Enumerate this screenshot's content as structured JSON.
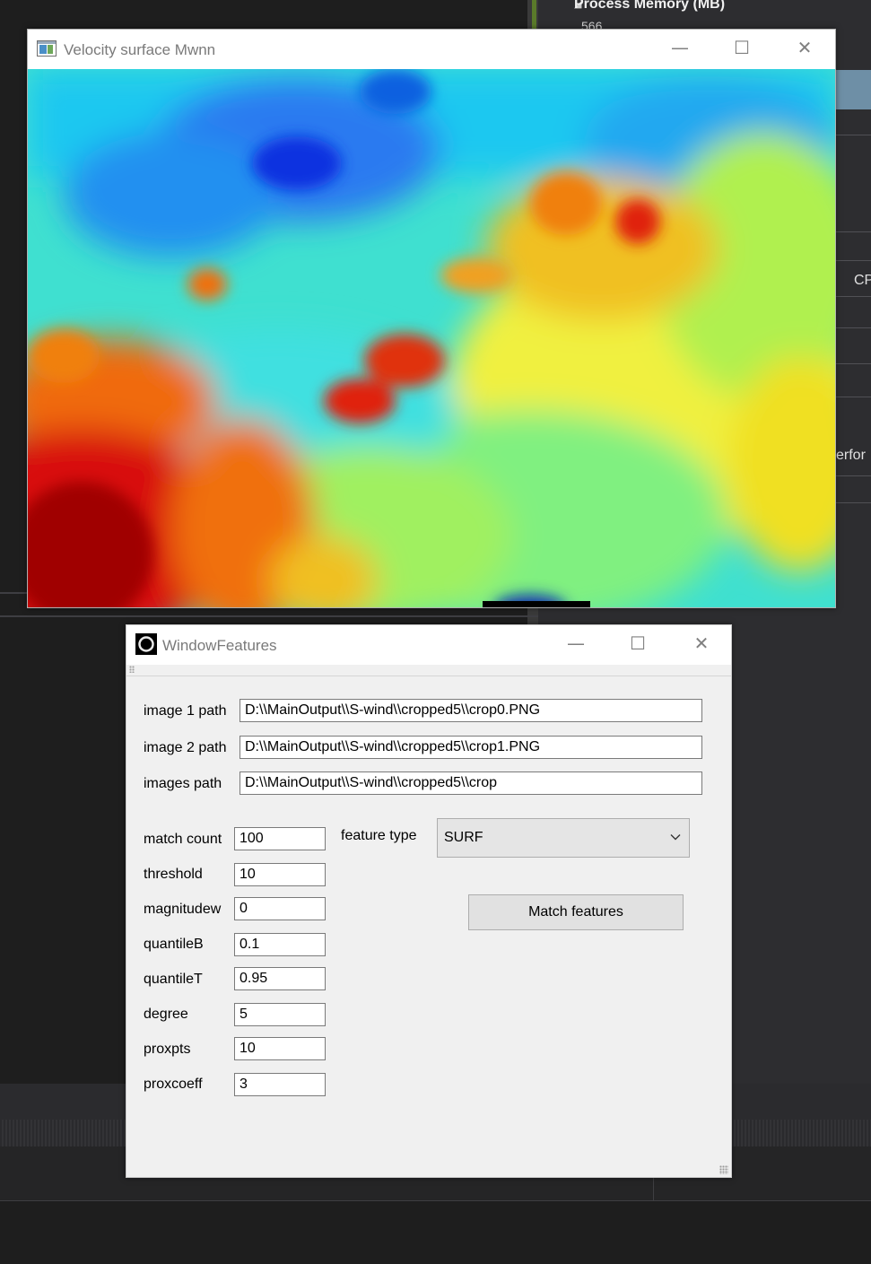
{
  "background": {
    "process_memory_title": "Process Memory (MB)",
    "process_memory_value": "566",
    "cpu_label_partial": "CP",
    "perf_label_partial": "erfor"
  },
  "velocity_window": {
    "title": "Velocity surface Mwnn",
    "minimize": "—",
    "maximize": "☐",
    "close": "✕"
  },
  "features_window": {
    "title": "WindowFeatures",
    "minimize": "—",
    "maximize": "☐",
    "close": "✕",
    "image1_label": "image 1 path",
    "image1_value": "D:\\\\MainOutput\\\\S-wind\\\\cropped5\\\\crop0.PNG",
    "image2_label": "image 2 path",
    "image2_value": "D:\\\\MainOutput\\\\S-wind\\\\cropped5\\\\crop1.PNG",
    "images_label": "images path",
    "images_value": "D:\\\\MainOutput\\\\S-wind\\\\cropped5\\\\crop",
    "params": [
      {
        "label": "match count",
        "value": "100"
      },
      {
        "label": "threshold",
        "value": "10"
      },
      {
        "label": "magnitudew",
        "value": "0"
      },
      {
        "label": "quantileB",
        "value": "0.1"
      },
      {
        "label": "quantileT",
        "value": "0.95"
      },
      {
        "label": "degree",
        "value": "5"
      },
      {
        "label": "proxpts",
        "value": "10"
      },
      {
        "label": "proxcoeff",
        "value": "3"
      }
    ],
    "feature_type_label": "feature type",
    "feature_type_value": "SURF",
    "match_button_label": "Match features"
  },
  "colors": {
    "ide_background": "#1e1e1e",
    "window_background": "#f0f0f0",
    "titlebar": "#ffffff",
    "title_text": "#7a7a7a"
  }
}
